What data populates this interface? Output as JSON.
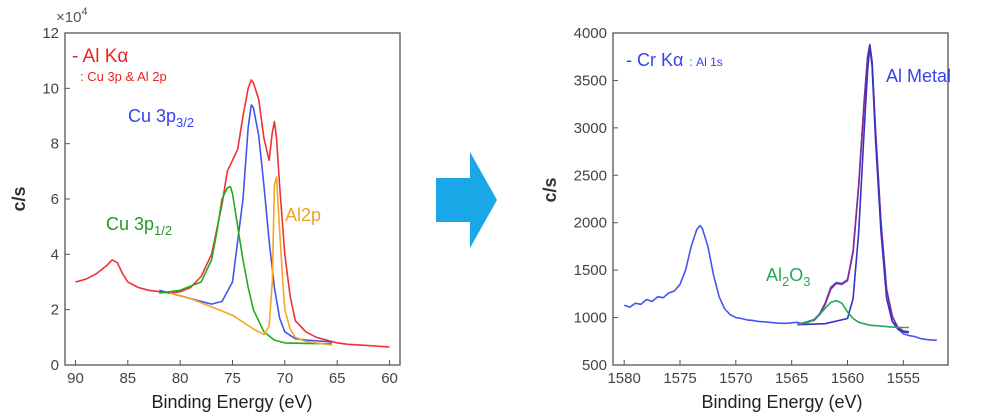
{
  "chart_data": [
    {
      "type": "line",
      "xlabel": "Binding Energy (eV)",
      "ylabel": "c/s",
      "y_multiplier": "×10",
      "y_exponent": "4",
      "xlim": [
        91,
        59
      ],
      "ylim": [
        0,
        12
      ],
      "xticks": [
        "90",
        "85",
        "80",
        "75",
        "70",
        "65",
        "60"
      ],
      "yticks": [
        "0",
        "2",
        "4",
        "6",
        "8",
        "10",
        "12"
      ],
      "annotations": {
        "source_title": "- Al Kα",
        "source_sub": ": Cu 3p & Al 2p",
        "cu32_main": "Cu 3p",
        "cu32_sub": "3/2",
        "cu12_main": "Cu 3p",
        "cu12_sub": "1/2",
        "al2p": "Al2p"
      },
      "series": [
        {
          "name": "envelope",
          "color": "#ee3333",
          "points": [
            [
              90,
              3.0
            ],
            [
              89,
              3.1
            ],
            [
              88,
              3.3
            ],
            [
              87,
              3.6
            ],
            [
              86.5,
              3.8
            ],
            [
              86,
              3.7
            ],
            [
              85.5,
              3.3
            ],
            [
              85,
              3.0
            ],
            [
              84,
              2.8
            ],
            [
              83,
              2.7
            ],
            [
              82,
              2.65
            ],
            [
              81,
              2.6
            ],
            [
              80,
              2.65
            ],
            [
              79,
              2.8
            ],
            [
              78,
              3.2
            ],
            [
              77,
              4.0
            ],
            [
              76,
              5.8
            ],
            [
              75.5,
              7.0
            ],
            [
              75,
              7.4
            ],
            [
              74.5,
              7.8
            ],
            [
              74,
              9.0
            ],
            [
              73.5,
              10.0
            ],
            [
              73.2,
              10.3
            ],
            [
              73,
              10.2
            ],
            [
              72.5,
              9.6
            ],
            [
              72,
              8.2
            ],
            [
              71.5,
              7.4
            ],
            [
              71.2,
              8.4
            ],
            [
              71,
              8.8
            ],
            [
              70.8,
              8.2
            ],
            [
              70.5,
              6.5
            ],
            [
              70,
              4.0
            ],
            [
              69.5,
              2.5
            ],
            [
              69,
              1.6
            ],
            [
              68,
              1.2
            ],
            [
              67,
              1.0
            ],
            [
              66,
              0.9
            ],
            [
              65,
              0.8
            ],
            [
              64,
              0.75
            ],
            [
              62,
              0.7
            ],
            [
              60,
              0.65
            ]
          ]
        },
        {
          "name": "Cu 3p3/2",
          "color": "#4455ee",
          "points": [
            [
              82,
              2.7
            ],
            [
              80,
              2.5
            ],
            [
              78,
              2.3
            ],
            [
              77,
              2.2
            ],
            [
              76,
              2.3
            ],
            [
              75,
              3.0
            ],
            [
              74,
              6.0
            ],
            [
              73.5,
              8.6
            ],
            [
              73.2,
              9.4
            ],
            [
              73,
              9.3
            ],
            [
              72.5,
              8.3
            ],
            [
              72,
              6.5
            ],
            [
              71.5,
              4.5
            ],
            [
              71,
              2.8
            ],
            [
              70.5,
              1.7
            ],
            [
              70,
              1.2
            ],
            [
              69,
              0.95
            ],
            [
              68,
              0.9
            ],
            [
              66,
              0.85
            ],
            [
              65.5,
              0.82
            ]
          ]
        },
        {
          "name": "Cu 3p1/2",
          "color": "#22aa22",
          "points": [
            [
              82,
              2.6
            ],
            [
              80,
              2.7
            ],
            [
              78,
              3.0
            ],
            [
              77,
              3.8
            ],
            [
              76.5,
              4.8
            ],
            [
              76,
              6.0
            ],
            [
              75.5,
              6.4
            ],
            [
              75.2,
              6.45
            ],
            [
              75,
              6.2
            ],
            [
              74.5,
              5.0
            ],
            [
              74,
              3.8
            ],
            [
              73.5,
              2.8
            ],
            [
              73,
              2.0
            ],
            [
              72,
              1.2
            ],
            [
              71,
              0.9
            ],
            [
              70,
              0.8
            ],
            [
              68,
              0.78
            ],
            [
              66,
              0.77
            ],
            [
              65.5,
              0.76
            ]
          ]
        },
        {
          "name": "Al2p",
          "color": "#f5a623",
          "points": [
            [
              81,
              2.6
            ],
            [
              79,
              2.4
            ],
            [
              77,
              2.1
            ],
            [
              75,
              1.8
            ],
            [
              73,
              1.3
            ],
            [
              72,
              1.1
            ],
            [
              71.5,
              1.4
            ],
            [
              71.2,
              3.0
            ],
            [
              71,
              6.5
            ],
            [
              70.8,
              6.8
            ],
            [
              70.6,
              5.5
            ],
            [
              70.2,
              3.0
            ],
            [
              70,
              2.0
            ],
            [
              69.5,
              1.3
            ],
            [
              69,
              1.0
            ],
            [
              68,
              0.85
            ],
            [
              66,
              0.75
            ],
            [
              65.5,
              0.72
            ]
          ]
        }
      ]
    },
    {
      "type": "line",
      "xlabel": "Binding Energy (eV)",
      "ylabel": "c/s",
      "xlim": [
        1581,
        1551
      ],
      "ylim": [
        500,
        4000
      ],
      "xticks": [
        "1580",
        "1575",
        "1570",
        "1565",
        "1560",
        "1555"
      ],
      "yticks": [
        "500",
        "1000",
        "1500",
        "2000",
        "2500",
        "3000",
        "3500",
        "4000"
      ],
      "annotations": {
        "source_title": "- Cr Kα",
        "source_sub": ": Al 1s",
        "al2o3_main": "Al",
        "al2o3_sub1": "2",
        "al2o3_mid": "O",
        "al2o3_sub2": "3",
        "al_metal": "Al Metal"
      },
      "series": [
        {
          "name": "measured",
          "color": "#4455ee",
          "points": [
            [
              1580,
              1130
            ],
            [
              1579.5,
              1110
            ],
            [
              1579,
              1150
            ],
            [
              1578.5,
              1140
            ],
            [
              1578,
              1190
            ],
            [
              1577.5,
              1170
            ],
            [
              1577,
              1220
            ],
            [
              1576.5,
              1210
            ],
            [
              1576,
              1260
            ],
            [
              1575.5,
              1280
            ],
            [
              1575,
              1350
            ],
            [
              1574.5,
              1500
            ],
            [
              1574,
              1750
            ],
            [
              1573.5,
              1930
            ],
            [
              1573.2,
              1970
            ],
            [
              1573,
              1940
            ],
            [
              1572.5,
              1750
            ],
            [
              1572,
              1450
            ],
            [
              1571.5,
              1220
            ],
            [
              1571,
              1090
            ],
            [
              1570.5,
              1030
            ],
            [
              1570,
              1000
            ],
            [
              1569.5,
              990
            ],
            [
              1569,
              975
            ],
            [
              1568.5,
              970
            ],
            [
              1568,
              960
            ],
            [
              1567.5,
              955
            ],
            [
              1567,
              950
            ],
            [
              1566.5,
              945
            ],
            [
              1566,
              940
            ],
            [
              1565.5,
              940
            ],
            [
              1565,
              945
            ],
            [
              1564.5,
              950
            ],
            [
              1564,
              930
            ],
            [
              1563.5,
              960
            ],
            [
              1563,
              980
            ],
            [
              1562.5,
              1040
            ],
            [
              1562,
              1150
            ],
            [
              1561.5,
              1320
            ],
            [
              1561,
              1370
            ],
            [
              1560.5,
              1360
            ],
            [
              1560,
              1400
            ],
            [
              1559.5,
              1700
            ],
            [
              1559,
              2400
            ],
            [
              1558.5,
              3300
            ],
            [
              1558.2,
              3750
            ],
            [
              1558,
              3880
            ],
            [
              1557.8,
              3700
            ],
            [
              1557.5,
              3000
            ],
            [
              1557,
              2000
            ],
            [
              1556.5,
              1300
            ],
            [
              1556,
              1020
            ],
            [
              1555.5,
              880
            ],
            [
              1555,
              830
            ],
            [
              1554.5,
              810
            ],
            [
              1554,
              800
            ],
            [
              1553.5,
              780
            ],
            [
              1553,
              770
            ],
            [
              1552.5,
              765
            ],
            [
              1552,
              760
            ]
          ]
        },
        {
          "name": "fit envelope",
          "color": "#8a2a8a",
          "points": [
            [
              1564.5,
              930
            ],
            [
              1563,
              970
            ],
            [
              1562.5,
              1030
            ],
            [
              1562,
              1140
            ],
            [
              1561.5,
              1300
            ],
            [
              1561,
              1360
            ],
            [
              1560.5,
              1350
            ],
            [
              1560,
              1390
            ],
            [
              1559.5,
              1690
            ],
            [
              1559,
              2390
            ],
            [
              1558.5,
              3290
            ],
            [
              1558.2,
              3740
            ],
            [
              1558,
              3870
            ],
            [
              1557.8,
              3690
            ],
            [
              1557.5,
              2990
            ],
            [
              1557,
              1990
            ],
            [
              1556.5,
              1290
            ],
            [
              1556,
              1010
            ],
            [
              1555.5,
              900
            ],
            [
              1555,
              860
            ],
            [
              1554.5,
              850
            ]
          ]
        },
        {
          "name": "Al Metal",
          "color": "#3333cc",
          "points": [
            [
              1564.5,
              925
            ],
            [
              1562,
              935
            ],
            [
              1560,
              990
            ],
            [
              1559.5,
              1200
            ],
            [
              1559,
              1900
            ],
            [
              1558.5,
              3000
            ],
            [
              1558.2,
              3600
            ],
            [
              1558,
              3860
            ],
            [
              1557.8,
              3650
            ],
            [
              1557.5,
              2900
            ],
            [
              1557,
              1900
            ],
            [
              1556.5,
              1200
            ],
            [
              1556,
              960
            ],
            [
              1555.5,
              880
            ],
            [
              1555,
              850
            ],
            [
              1554.5,
              840
            ]
          ]
        },
        {
          "name": "Al2O3",
          "color": "#22aa55",
          "points": [
            [
              1564.5,
              930
            ],
            [
              1563.5,
              950
            ],
            [
              1563,
              980
            ],
            [
              1562.5,
              1030
            ],
            [
              1562,
              1100
            ],
            [
              1561.5,
              1160
            ],
            [
              1561,
              1180
            ],
            [
              1560.5,
              1150
            ],
            [
              1560,
              1060
            ],
            [
              1559.5,
              990
            ],
            [
              1559,
              950
            ],
            [
              1558,
              920
            ],
            [
              1557,
              910
            ],
            [
              1556,
              900
            ],
            [
              1555,
              895
            ],
            [
              1554.5,
              895
            ]
          ]
        }
      ]
    }
  ]
}
